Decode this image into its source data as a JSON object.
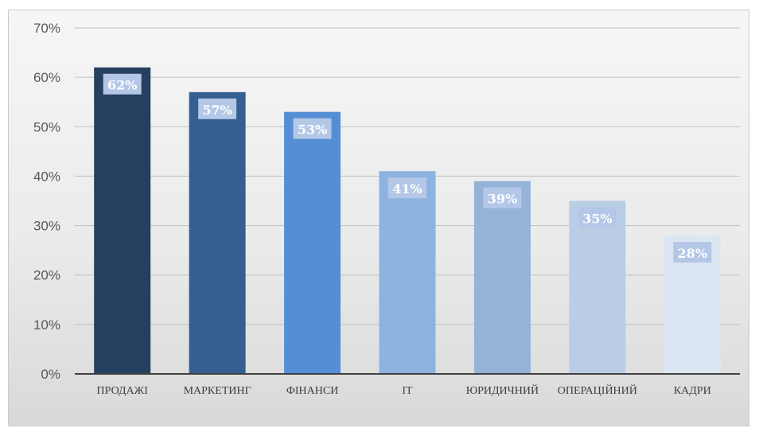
{
  "chart_data": {
    "type": "bar",
    "title": "",
    "xlabel": "",
    "ylabel": "",
    "categories": [
      "ПРОДАЖІ",
      "МАРКЕТИНГ",
      "ФІНАНСИ",
      "IT",
      "ЮРИДИЧНИЙ",
      "ОПЕРАЦІЙНИЙ",
      "КАДРИ"
    ],
    "values": [
      62,
      57,
      53,
      41,
      39,
      35,
      28
    ],
    "data_labels": [
      "62%",
      "57%",
      "53%",
      "41%",
      "39%",
      "35%",
      "28%"
    ],
    "ylim": [
      0,
      70
    ],
    "y_ticks": [
      0,
      10,
      20,
      30,
      40,
      50,
      60,
      70
    ],
    "y_tick_labels": [
      "0%",
      "10%",
      "20%",
      "30%",
      "40%",
      "50%",
      "60%",
      "70%"
    ],
    "bar_colors": [
      "#253f5f",
      "#355f91",
      "#558ed5",
      "#8db3e2",
      "#95b3d7",
      "#b9cde5",
      "#dce6f2"
    ],
    "label_box_color": "#b4c7e7",
    "grid": true,
    "legend": "none"
  }
}
